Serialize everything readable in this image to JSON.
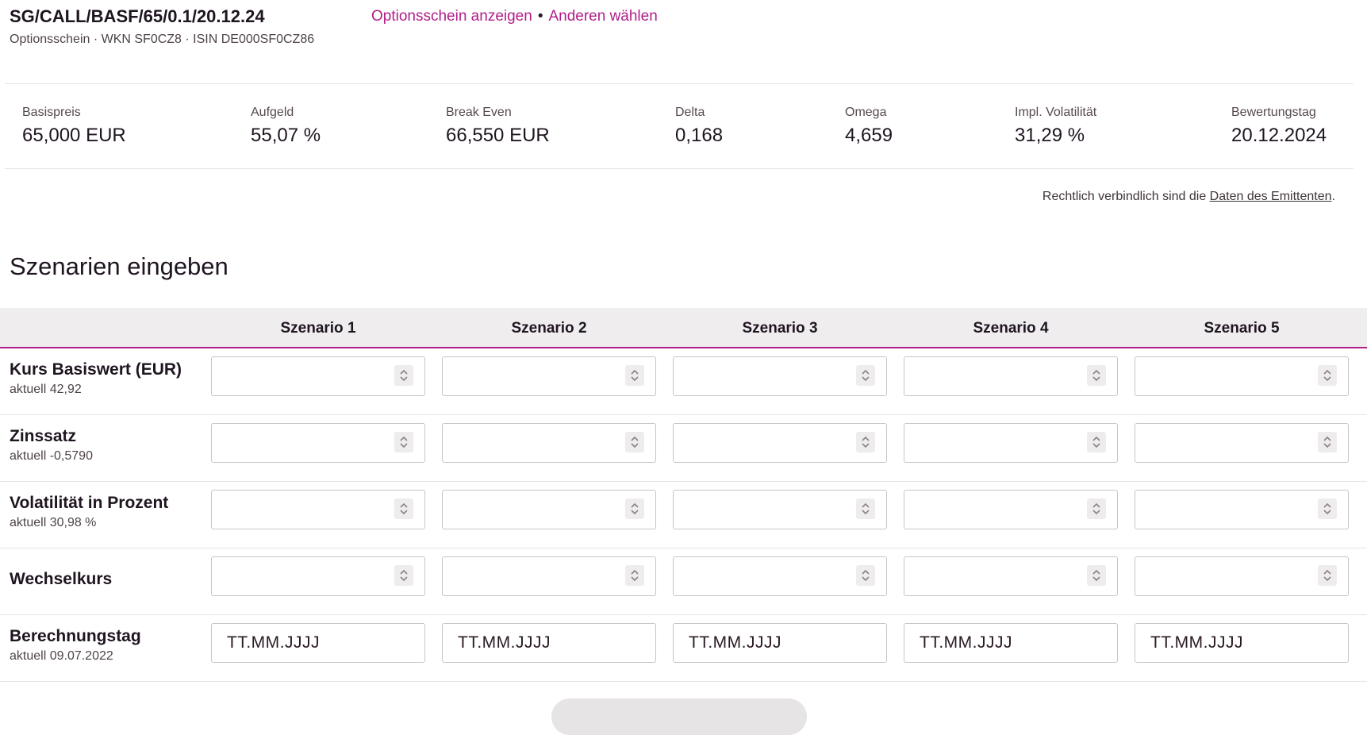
{
  "header": {
    "title": "SG/CALL/BASF/65/0.1/20.12.24",
    "subtitle": "Optionsschein · WKN SF0CZ8 · ISIN DE000SF0CZ86",
    "link_show": "Optionsschein anzeigen",
    "link_sep": "•",
    "link_change": "Anderen wählen"
  },
  "kpis": [
    {
      "label": "Basispreis",
      "value": "65,000 EUR"
    },
    {
      "label": "Aufgeld",
      "value": "55,07 %"
    },
    {
      "label": "Break Even",
      "value": "66,550 EUR"
    },
    {
      "label": "Delta",
      "value": "0,168"
    },
    {
      "label": "Omega",
      "value": "4,659"
    },
    {
      "label": "Impl. Volatilität",
      "value": "31,29 %"
    },
    {
      "label": "Bewertungstag",
      "value": "20.12.2024"
    }
  ],
  "legal": {
    "prefix": "Rechtlich verbindlich sind die ",
    "link": "Daten des Emittenten",
    "suffix": "."
  },
  "scenarios": {
    "title": "Szenarien eingeben",
    "columns": [
      "Szenario 1",
      "Szenario 2",
      "Szenario 3",
      "Szenario 4",
      "Szenario 5"
    ],
    "rows": [
      {
        "label": "Kurs Basiswert (EUR)",
        "sub": "aktuell 42,92"
      },
      {
        "label": "Zinssatz",
        "sub": "aktuell -0,5790"
      },
      {
        "label": "Volatilität in Prozent",
        "sub": "aktuell 30,98 %"
      },
      {
        "label": "Wechselkurs",
        "sub": ""
      },
      {
        "label": "Berechnungstag",
        "sub": "aktuell 09.07.2022"
      }
    ],
    "date_placeholder": "TT.MM.JJJJ"
  },
  "colors": {
    "accent": "#b01e8a",
    "header_bg": "#efedee",
    "text": "#1f1520"
  }
}
